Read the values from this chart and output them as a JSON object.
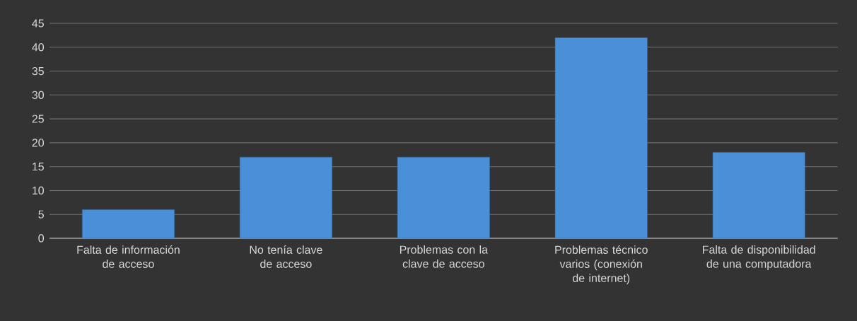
{
  "chart_data": {
    "type": "bar",
    "categories": [
      "Falta de información de acceso",
      "No tenía clave de acceso",
      "Problemas con la clave de acceso",
      "Problemas técnico varios (conexión de internet)",
      "Falta de disponibilidad de una computadora"
    ],
    "values": [
      6,
      17,
      17,
      42,
      18
    ],
    "color": "#4a90d9",
    "ylim": [
      0,
      45
    ],
    "yticks": [
      0,
      5,
      10,
      15,
      20,
      25,
      30,
      35,
      40,
      45
    ],
    "grid": "y"
  }
}
